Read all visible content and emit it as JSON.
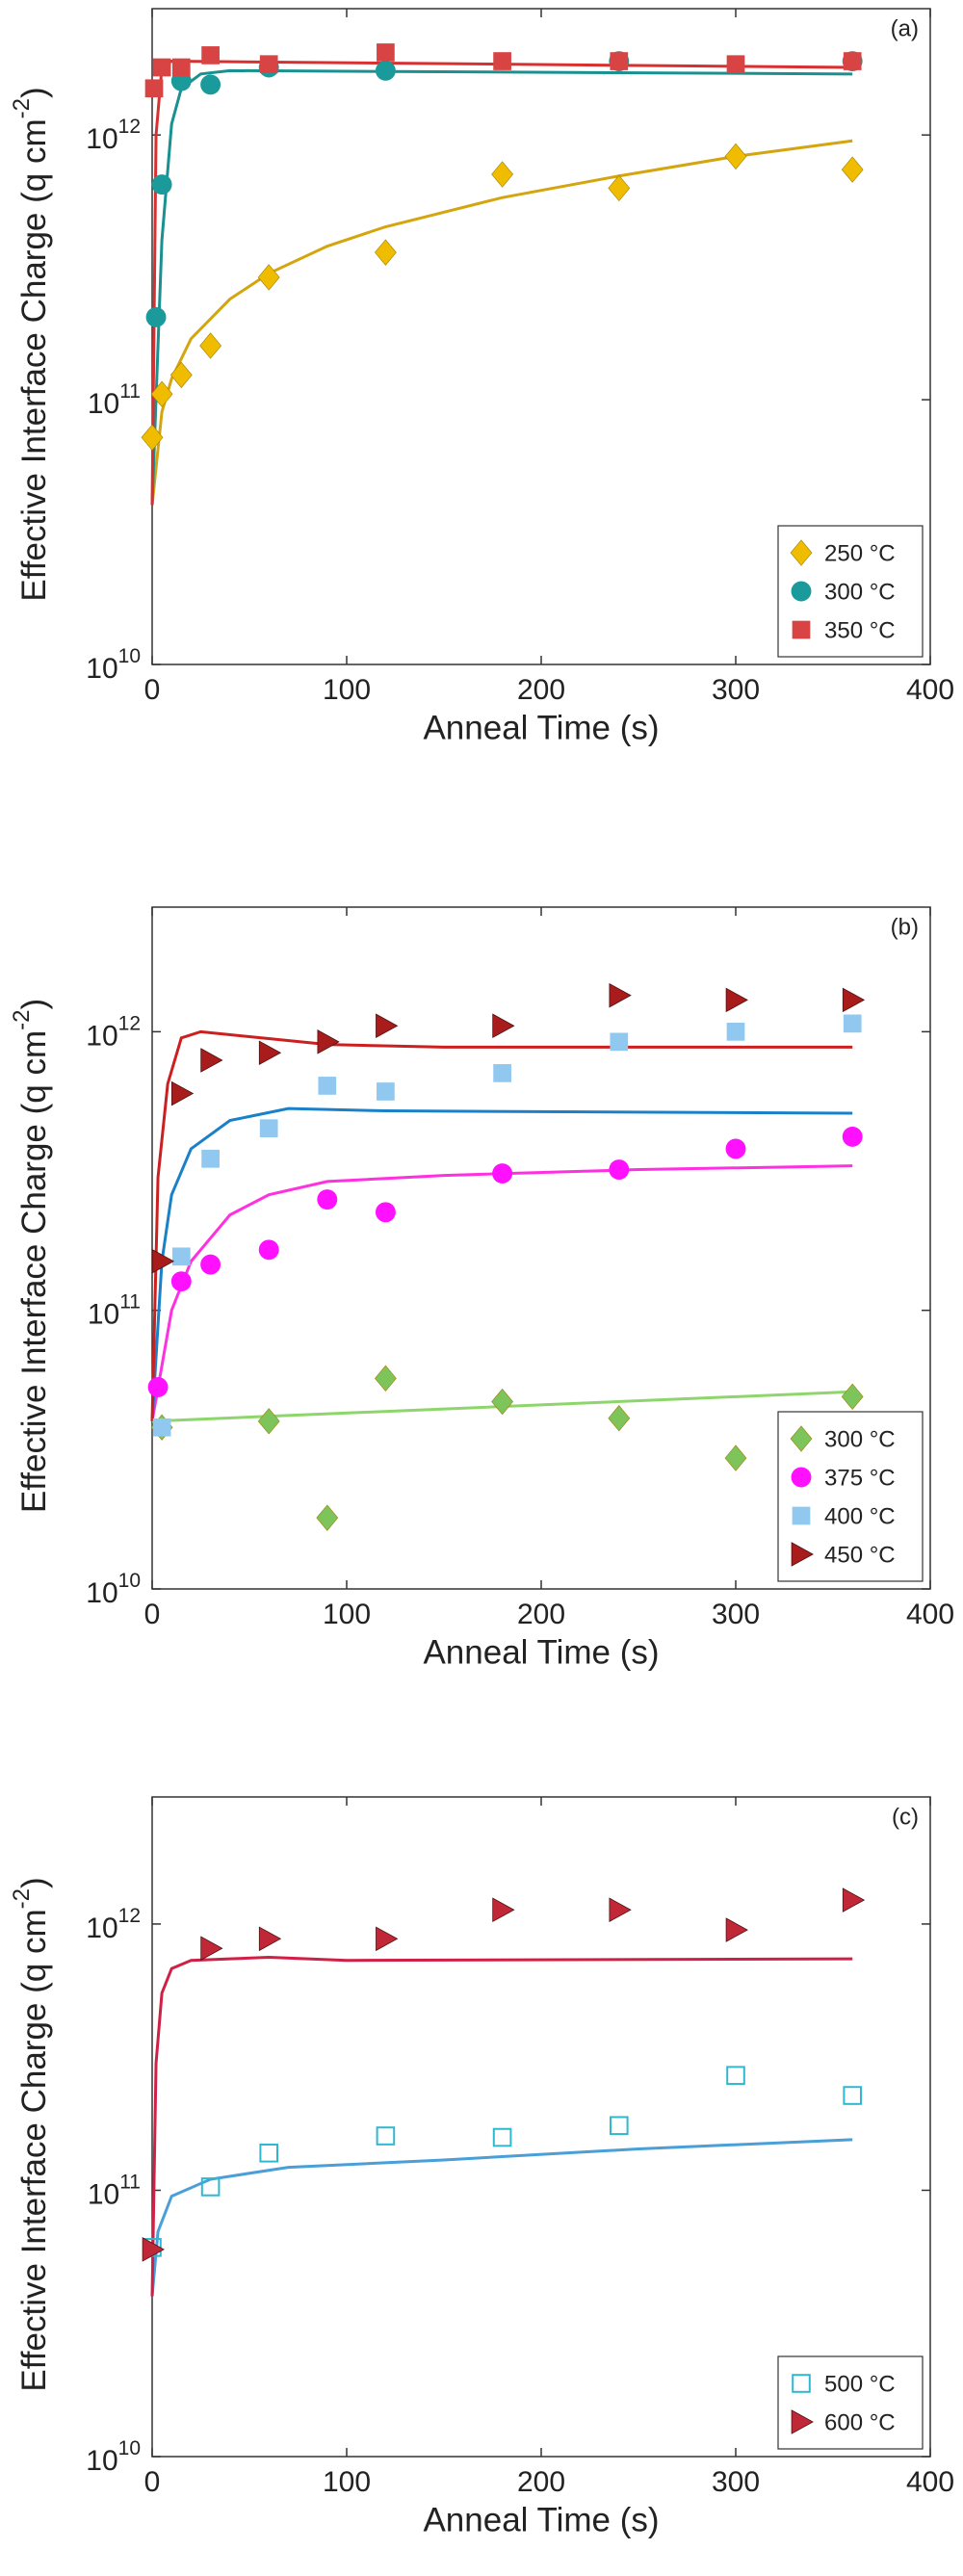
{
  "chart_data": [
    {
      "type": "scatter",
      "panel_label": "(a)",
      "x_label": "Anneal Time (s)",
      "y_label": "Effective Interface Charge (q cm",
      "y_label_sup": "-2",
      "y_label_end": ")",
      "log_y": true,
      "legend": "bottom-right",
      "xlim": [
        0,
        400
      ],
      "xticks": [
        0,
        100,
        200,
        300,
        400
      ],
      "ylim": [
        10000000000,
        3000000000000
      ],
      "yticks": [
        {
          "value": 10000000000,
          "label": "10",
          "exp": "10"
        },
        {
          "value": 100000000000,
          "label": "10",
          "exp": "11"
        },
        {
          "value": 1000000000000,
          "label": "10",
          "exp": "12"
        }
      ],
      "series": [
        {
          "name": "250 °C",
          "color": "#f0bc00",
          "line_color": "#d4a50e",
          "marker": "diamond",
          "x": [
            0,
            5,
            15,
            30,
            60,
            120,
            180,
            240,
            300,
            360
          ],
          "values": [
            72000000000,
            105000000000,
            124000000000,
            160000000000,
            290000000000,
            360000000000,
            710000000000,
            630000000000,
            830000000000,
            740000000000
          ],
          "fit_x": [
            0,
            5,
            10,
            20,
            40,
            60,
            90,
            120,
            180,
            240,
            300,
            360
          ],
          "fit_values": [
            40000000000,
            90000000000,
            120000000000,
            170000000000,
            240000000000,
            300000000000,
            380000000000,
            450000000000,
            580000000000,
            700000000000,
            830000000000,
            950000000000
          ]
        },
        {
          "name": "300 °C",
          "color": "#1a9a9a",
          "line_color": "#1a9090",
          "marker": "circle",
          "x": [
            2,
            5,
            15,
            30,
            60,
            120,
            240,
            360
          ],
          "values": [
            205000000000,
            650000000000,
            1600000000000,
            1550000000000,
            1800000000000,
            1750000000000,
            1900000000000,
            1900000000000
          ],
          "fit_x": [
            0,
            5,
            10,
            15,
            25,
            40,
            360
          ],
          "fit_values": [
            40000000000,
            400000000000,
            1100000000000,
            1500000000000,
            1700000000000,
            1750000000000,
            1700000000000
          ]
        },
        {
          "name": "350 °C",
          "color": "#d84444",
          "line_color": "#d83030",
          "marker": "square",
          "x": [
            1,
            5,
            15,
            30,
            60,
            120,
            180,
            240,
            300,
            360
          ],
          "values": [
            1500000000000,
            1800000000000,
            1800000000000,
            2000000000000,
            1850000000000,
            2050000000000,
            1900000000000,
            1900000000000,
            1850000000000,
            1900000000000
          ],
          "fit_x": [
            0,
            2,
            5,
            10,
            360
          ],
          "fit_values": [
            40000000000,
            1000000000000,
            1800000000000,
            1900000000000,
            1800000000000
          ]
        }
      ]
    },
    {
      "type": "scatter",
      "panel_label": "(b)",
      "x_label": "Anneal Time (s)",
      "y_label": "Effective Interface Charge (q cm",
      "y_label_sup": "-2",
      "y_label_end": ")",
      "log_y": true,
      "legend": "bottom-right",
      "xlim": [
        0,
        400
      ],
      "xticks": [
        0,
        100,
        200,
        300,
        400
      ],
      "ylim": [
        10000000000,
        2800000000000
      ],
      "yticks": [
        {
          "value": 10000000000,
          "label": "10",
          "exp": "10"
        },
        {
          "value": 100000000000,
          "label": "10",
          "exp": "11"
        },
        {
          "value": 1000000000000,
          "label": "10",
          "exp": "12"
        }
      ],
      "series": [
        {
          "name": "300 °C",
          "color": "#7dc45a",
          "line_color": "#8ed66c",
          "marker": "diamond",
          "x": [
            5,
            60,
            90,
            120,
            180,
            240,
            300,
            360
          ],
          "values": [
            38000000000,
            40000000000,
            18000000000,
            57000000000,
            47000000000,
            41000000000,
            29500000000,
            49000000000
          ],
          "fit_x": [
            0,
            360
          ],
          "fit_values": [
            40000000000,
            51000000000
          ]
        },
        {
          "name": "375 °C",
          "color": "#ff10ff",
          "line_color": "#ff30e0",
          "marker": "circle",
          "x": [
            3,
            15,
            30,
            60,
            90,
            120,
            180,
            240,
            300,
            360
          ],
          "values": [
            53000000000,
            127000000000,
            146000000000,
            165000000000,
            250000000000,
            225000000000,
            310000000000,
            320000000000,
            380000000000,
            420000000000
          ],
          "fit_x": [
            0,
            10,
            20,
            40,
            60,
            90,
            150,
            250,
            360
          ],
          "fit_values": [
            40000000000,
            100000000000,
            150000000000,
            220000000000,
            260000000000,
            290000000000,
            305000000000,
            320000000000,
            330000000000
          ]
        },
        {
          "name": "400 °C",
          "color": "#90c8f0",
          "line_color": "#1a80c8",
          "marker": "square",
          "x": [
            5,
            15,
            30,
            60,
            90,
            120,
            180,
            240,
            300,
            360
          ],
          "values": [
            38000000000,
            156000000000,
            350000000000,
            450000000000,
            640000000000,
            610000000000,
            710000000000,
            920000000000,
            1000000000000,
            1070000000000
          ],
          "fit_x": [
            0,
            5,
            10,
            20,
            40,
            70,
            120,
            360
          ],
          "fit_values": [
            40000000000,
            150000000000,
            260000000000,
            380000000000,
            480000000000,
            530000000000,
            520000000000,
            510000000000
          ]
        },
        {
          "name": "450 °C",
          "color": "#a81c1c",
          "line_color": "#cc2020",
          "marker": "triangle",
          "x": [
            5,
            15,
            30,
            60,
            90,
            120,
            180,
            240,
            300,
            360
          ],
          "values": [
            150000000000,
            600000000000,
            790000000000,
            840000000000,
            920000000000,
            1050000000000,
            1050000000000,
            1350000000000,
            1300000000000,
            1300000000000
          ],
          "fit_x": [
            0,
            3,
            8,
            15,
            25,
            50,
            90,
            150,
            360
          ],
          "fit_values": [
            40000000000,
            300000000000,
            650000000000,
            950000000000,
            1000000000000,
            960000000000,
            900000000000,
            880000000000,
            880000000000
          ]
        }
      ]
    },
    {
      "type": "scatter",
      "panel_label": "(c)",
      "x_label": "Anneal Time (s)",
      "y_label": "Effective Interface Charge (q cm",
      "y_label_sup": "-2",
      "y_label_end": ")",
      "log_y": true,
      "legend": "bottom-right",
      "xlim": [
        0,
        400
      ],
      "xticks": [
        0,
        100,
        200,
        300,
        400
      ],
      "ylim": [
        10000000000,
        3000000000000
      ],
      "yticks": [
        {
          "value": 10000000000,
          "label": "10",
          "exp": "10"
        },
        {
          "value": 100000000000,
          "label": "10",
          "exp": "11"
        },
        {
          "value": 1000000000000,
          "label": "10",
          "exp": "12"
        }
      ],
      "series": [
        {
          "name": "500 °C",
          "color": "#30b8d0",
          "line_color": "#4a9fd8",
          "marker": "square-open",
          "x": [
            0,
            30,
            60,
            120,
            180,
            240,
            300,
            360
          ],
          "values": [
            61000000000,
            103000000000,
            138000000000,
            160000000000,
            158000000000,
            175000000000,
            270000000000,
            227000000000
          ],
          "fit_x": [
            0,
            3,
            10,
            30,
            70,
            150,
            250,
            360
          ],
          "fit_values": [
            40000000000,
            70000000000,
            95000000000,
            110000000000,
            122000000000,
            130000000000,
            143000000000,
            155000000000
          ]
        },
        {
          "name": "600 °C",
          "color": "#c02838",
          "line_color": "#d02045",
          "marker": "triangle",
          "x": [
            0,
            30,
            60,
            120,
            180,
            240,
            300,
            360
          ],
          "values": [
            60000000000,
            810000000000,
            880000000000,
            880000000000,
            1130000000000,
            1130000000000,
            950000000000,
            1230000000000
          ],
          "fit_x": [
            0,
            2,
            5,
            10,
            20,
            60,
            100,
            360
          ],
          "fit_values": [
            40000000000,
            300000000000,
            550000000000,
            680000000000,
            730000000000,
            750000000000,
            730000000000,
            740000000000
          ]
        }
      ]
    }
  ]
}
